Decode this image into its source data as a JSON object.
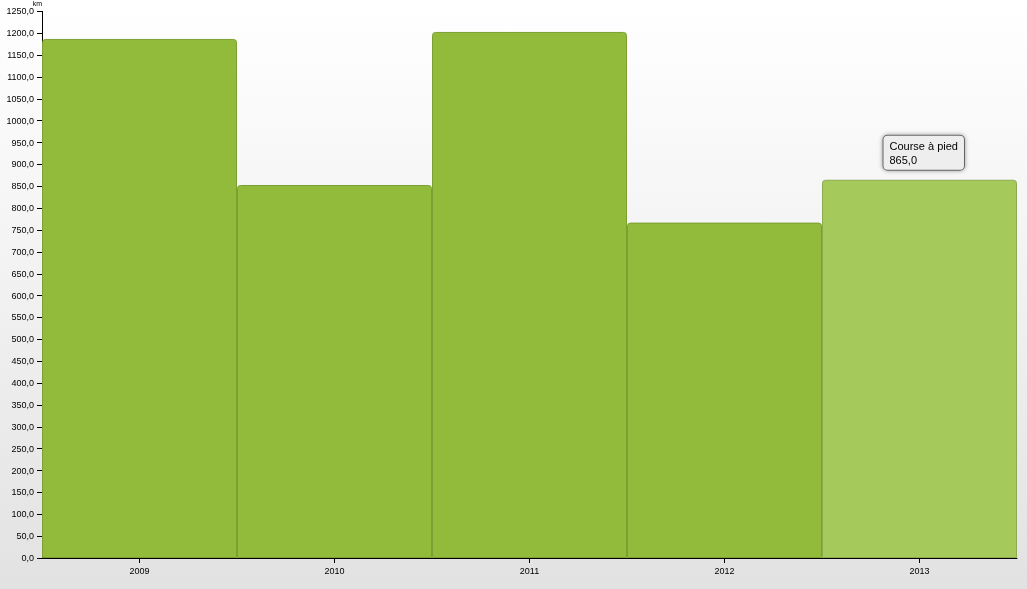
{
  "chart_data": {
    "type": "bar",
    "ylabel": "km",
    "categories": [
      "2009",
      "2010",
      "2011",
      "2012",
      "2013"
    ],
    "values": [
      1187,
      853,
      1203,
      767,
      865
    ],
    "colors": [
      "#93bb3b",
      "#93bb3b",
      "#93bb3b",
      "#93bb3b",
      "#a6c95c"
    ],
    "ylim": [
      0,
      1250
    ],
    "yticks": [
      {
        "value": 0,
        "label": "0,0"
      },
      {
        "value": 50,
        "label": "50,0"
      },
      {
        "value": 100,
        "label": "100,0"
      },
      {
        "value": 150,
        "label": "150,0"
      },
      {
        "value": 200,
        "label": "200,0"
      },
      {
        "value": 250,
        "label": "250,0"
      },
      {
        "value": 300,
        "label": "300,0"
      },
      {
        "value": 350,
        "label": "350,0"
      },
      {
        "value": 400,
        "label": "400,0"
      },
      {
        "value": 450,
        "label": "450,0"
      },
      {
        "value": 500,
        "label": "500,0"
      },
      {
        "value": 550,
        "label": "550,0"
      },
      {
        "value": 600,
        "label": "600,0"
      },
      {
        "value": 650,
        "label": "650,0"
      },
      {
        "value": 700,
        "label": "700,0"
      },
      {
        "value": 750,
        "label": "750,0"
      },
      {
        "value": 800,
        "label": "800,0"
      },
      {
        "value": 850,
        "label": "850,0"
      },
      {
        "value": 900,
        "label": "900,0"
      },
      {
        "value": 950,
        "label": "950,0"
      },
      {
        "value": 1000,
        "label": "1000,0"
      },
      {
        "value": 1050,
        "label": "1050,0"
      },
      {
        "value": 1100,
        "label": "1100,0"
      },
      {
        "value": 1150,
        "label": "1150,0"
      },
      {
        "value": 1200,
        "label": "1200,0"
      },
      {
        "value": 1250,
        "label": "1250,0"
      }
    ],
    "annotations": [
      {
        "text": "Course à pied\n865,0",
        "x": "2013",
        "y": 865
      }
    ],
    "grid": false
  }
}
